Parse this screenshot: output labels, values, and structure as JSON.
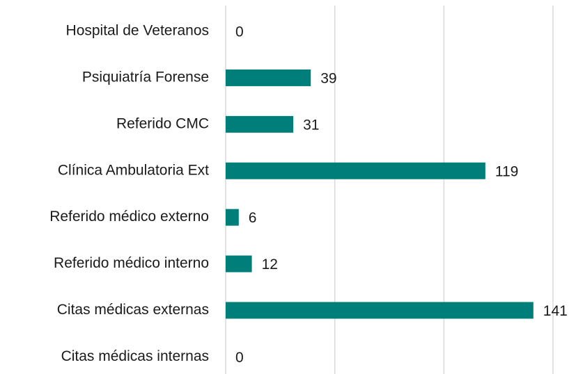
{
  "chart_data": {
    "type": "barh",
    "categories": [
      "Hospital de Veteranos",
      "Psiquiatría Forense",
      "Referido CMC",
      "Clínica Ambulatoria Ext",
      "Referido médico externo",
      "Referido médico interno",
      "Citas médicas externas",
      "Citas médicas internas"
    ],
    "values": [
      0,
      39,
      31,
      119,
      6,
      12,
      141,
      0
    ],
    "color": "#007f7a",
    "xlim": [
      0,
      150
    ],
    "xticks": [
      0,
      50,
      100,
      150
    ],
    "grid": true
  }
}
